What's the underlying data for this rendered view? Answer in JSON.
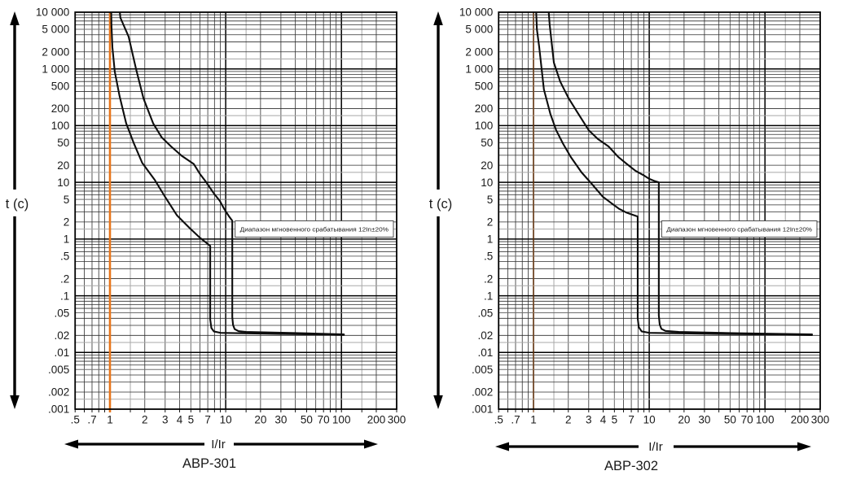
{
  "figure": {
    "description": "Time-current trip characteristic curves for two circuit breakers",
    "background": "#ffffff"
  },
  "palette": {
    "curve_color": "#0d0d0d",
    "reference_line_color": "#e8751a",
    "grid_major": "#000000",
    "grid_minor": "#2e2e2e",
    "grid_mid": "#6e6e6e",
    "grid_light": "#a8a8a8"
  },
  "chart_data": [
    {
      "type": "line",
      "title": "АВР-301",
      "xlabel": "I/Ir",
      "ylabel": "t (c)",
      "x_scale": "log",
      "y_scale": "log",
      "xlim": [
        0.5,
        300
      ],
      "ylim": [
        0.001,
        10000
      ],
      "grid": true,
      "annotation": "Диапазон мгновенного срабатывания 12In±20%",
      "reference_line": {
        "x": 1,
        "color": "#e8751a",
        "opacity": 1,
        "width": 2.6
      },
      "x_ticks": [
        {
          "v": 0.5,
          "label": ".5"
        },
        {
          "v": 0.7,
          "label": ".7"
        },
        {
          "v": 1,
          "label": "1"
        },
        {
          "v": 2,
          "label": "2"
        },
        {
          "v": 3,
          "label": "3"
        },
        {
          "v": 4,
          "label": "4"
        },
        {
          "v": 5,
          "label": "5"
        },
        {
          "v": 7,
          "label": "7"
        },
        {
          "v": 10,
          "label": "10"
        },
        {
          "v": 20,
          "label": "20"
        },
        {
          "v": 30,
          "label": "30"
        },
        {
          "v": 50,
          "label": "50"
        },
        {
          "v": 70,
          "label": "70"
        },
        {
          "v": 100,
          "label": "100"
        },
        {
          "v": 200,
          "label": "200"
        },
        {
          "v": 300,
          "label": "300"
        }
      ],
      "y_ticks": [
        {
          "v": 10000,
          "label": "10 000"
        },
        {
          "v": 5000,
          "label": "5 000"
        },
        {
          "v": 2000,
          "label": "2 000"
        },
        {
          "v": 1000,
          "label": "1 000"
        },
        {
          "v": 500,
          "label": "500"
        },
        {
          "v": 200,
          "label": "200"
        },
        {
          "v": 100,
          "label": "100"
        },
        {
          "v": 50,
          "label": "50"
        },
        {
          "v": 20,
          "label": "20"
        },
        {
          "v": 10,
          "label": "10"
        },
        {
          "v": 5,
          "label": "5"
        },
        {
          "v": 2,
          "label": "2"
        },
        {
          "v": 1,
          "label": "1"
        },
        {
          "v": 0.5,
          "label": ".5"
        },
        {
          "v": 0.2,
          "label": ".2"
        },
        {
          "v": 0.1,
          "label": ".1"
        },
        {
          "v": 0.05,
          "label": ".05"
        },
        {
          "v": 0.02,
          "label": ".02"
        },
        {
          "v": 0.01,
          "label": ".01"
        },
        {
          "v": 0.005,
          "label": ".005"
        },
        {
          "v": 0.002,
          "label": ".002"
        },
        {
          "v": 0.001,
          "label": ".001"
        }
      ],
      "series": [
        {
          "name": "min-trip-curve",
          "points": [
            [
              1.02,
              20000
            ],
            [
              1.03,
              6000
            ],
            [
              1.05,
              2400
            ],
            [
              1.1,
              900
            ],
            [
              1.21,
              334
            ],
            [
              1.38,
              110
            ],
            [
              1.6,
              50
            ],
            [
              1.9,
              22
            ],
            [
              2.44,
              11
            ],
            [
              3,
              5.5
            ],
            [
              3.8,
              2.6
            ],
            [
              4.9,
              1.55
            ],
            [
              6,
              1.05
            ],
            [
              6.9,
              0.84
            ],
            [
              7.35,
              0.76
            ],
            [
              7.35,
              0.038
            ],
            [
              7.52,
              0.027
            ],
            [
              7.9,
              0.0235
            ],
            [
              9,
              0.0222
            ],
            [
              20,
              0.0215
            ],
            [
              60,
              0.0208
            ],
            [
              105,
              0.0203
            ]
          ]
        },
        {
          "name": "max-trip-curve",
          "points": [
            [
              1.19,
              16000
            ],
            [
              1.23,
              8000
            ],
            [
              1.45,
              3700
            ],
            [
              1.68,
              1000
            ],
            [
              1.95,
              300
            ],
            [
              2.36,
              110
            ],
            [
              2.8,
              62
            ],
            [
              3.37,
              43
            ],
            [
              4.2,
              29
            ],
            [
              5.3,
              21
            ],
            [
              6,
              14
            ],
            [
              6.8,
              10
            ],
            [
              7.8,
              6.6
            ],
            [
              8.9,
              4.7
            ],
            [
              9.7,
              3.4
            ],
            [
              10.7,
              2.5
            ],
            [
              11.4,
              2.1
            ],
            [
              11.4,
              0.042
            ],
            [
              11.58,
              0.0305
            ],
            [
              11.95,
              0.0258
            ],
            [
              12.9,
              0.0238
            ],
            [
              15,
              0.023
            ],
            [
              40,
              0.022
            ],
            [
              105,
              0.0208
            ]
          ]
        }
      ]
    },
    {
      "type": "line",
      "title": "АВР-302",
      "xlabel": "I/Ir",
      "ylabel": "t (c)",
      "x_scale": "log",
      "y_scale": "log",
      "xlim": [
        0.5,
        300
      ],
      "ylim": [
        0.001,
        10000
      ],
      "grid": true,
      "annotation": "Диапазон мгновенного срабатывания 12In±20%",
      "reference_line": {
        "x": 1,
        "color": "#e8751a",
        "opacity": 0.45,
        "width": 1.4
      },
      "x_ticks": [
        {
          "v": 0.5,
          "label": ".5"
        },
        {
          "v": 0.7,
          "label": ".7"
        },
        {
          "v": 1,
          "label": "1"
        },
        {
          "v": 2,
          "label": "2"
        },
        {
          "v": 3,
          "label": "3"
        },
        {
          "v": 4,
          "label": "4"
        },
        {
          "v": 5,
          "label": "5"
        },
        {
          "v": 7,
          "label": "7"
        },
        {
          "v": 10,
          "label": "10"
        },
        {
          "v": 20,
          "label": "20"
        },
        {
          "v": 30,
          "label": "30"
        },
        {
          "v": 50,
          "label": "50"
        },
        {
          "v": 70,
          "label": "70"
        },
        {
          "v": 100,
          "label": "100"
        },
        {
          "v": 200,
          "label": "200"
        },
        {
          "v": 300,
          "label": "300"
        }
      ],
      "y_ticks": [
        {
          "v": 10000,
          "label": "10 000"
        },
        {
          "v": 5000,
          "label": "5 000"
        },
        {
          "v": 2000,
          "label": "2 000"
        },
        {
          "v": 1000,
          "label": "1 000"
        },
        {
          "v": 500,
          "label": "500"
        },
        {
          "v": 200,
          "label": "200"
        },
        {
          "v": 100,
          "label": "100"
        },
        {
          "v": 50,
          "label": "50"
        },
        {
          "v": 20,
          "label": "20"
        },
        {
          "v": 10,
          "label": "10"
        },
        {
          "v": 5,
          "label": "5"
        },
        {
          "v": 2,
          "label": "2"
        },
        {
          "v": 1,
          "label": "1"
        },
        {
          "v": 0.5,
          "label": ".5"
        },
        {
          "v": 0.2,
          "label": ".2"
        },
        {
          "v": 0.1,
          "label": ".1"
        },
        {
          "v": 0.05,
          "label": ".05"
        },
        {
          "v": 0.02,
          "label": ".02"
        },
        {
          "v": 0.01,
          "label": ".01"
        },
        {
          "v": 0.005,
          "label": ".005"
        },
        {
          "v": 0.002,
          "label": ".002"
        },
        {
          "v": 0.001,
          "label": ".001"
        }
      ],
      "series": [
        {
          "name": "min-trip-curve",
          "points": [
            [
              1.04,
              20000
            ],
            [
              1.07,
              5000
            ],
            [
              1.12,
              2450
            ],
            [
              1.23,
              434
            ],
            [
              1.4,
              160
            ],
            [
              1.57,
              83
            ],
            [
              1.8,
              48
            ],
            [
              2.1,
              28
            ],
            [
              2.6,
              15
            ],
            [
              3.2,
              9.3
            ],
            [
              3.96,
              5.6
            ],
            [
              4.7,
              4.3
            ],
            [
              5.5,
              3.4
            ],
            [
              6.3,
              2.95
            ],
            [
              7.1,
              2.7
            ],
            [
              7.7,
              2.55
            ],
            [
              7.95,
              2.5
            ],
            [
              7.95,
              0.04
            ],
            [
              8.12,
              0.028
            ],
            [
              8.6,
              0.0235
            ],
            [
              10,
              0.0222
            ],
            [
              30,
              0.0214
            ],
            [
              120,
              0.0207
            ],
            [
              255,
              0.0202
            ]
          ]
        },
        {
          "name": "max-trip-curve",
          "points": [
            [
              1.32,
              20000
            ],
            [
              1.38,
              6000
            ],
            [
              1.5,
              1290
            ],
            [
              1.7,
              600
            ],
            [
              2,
              310
            ],
            [
              2.4,
              170
            ],
            [
              3,
              83
            ],
            [
              3.6,
              58
            ],
            [
              4.45,
              43
            ],
            [
              5.4,
              28
            ],
            [
              6.45,
              20.8
            ],
            [
              7.6,
              16
            ],
            [
              8.9,
              13.4
            ],
            [
              10,
              11.5
            ],
            [
              11.2,
              10.5
            ],
            [
              12.1,
              10
            ],
            [
              12.1,
              0.045
            ],
            [
              12.32,
              0.031
            ],
            [
              12.75,
              0.026
            ],
            [
              13.8,
              0.024
            ],
            [
              18,
              0.023
            ],
            [
              60,
              0.0218
            ],
            [
              255,
              0.0208
            ]
          ]
        }
      ]
    }
  ]
}
